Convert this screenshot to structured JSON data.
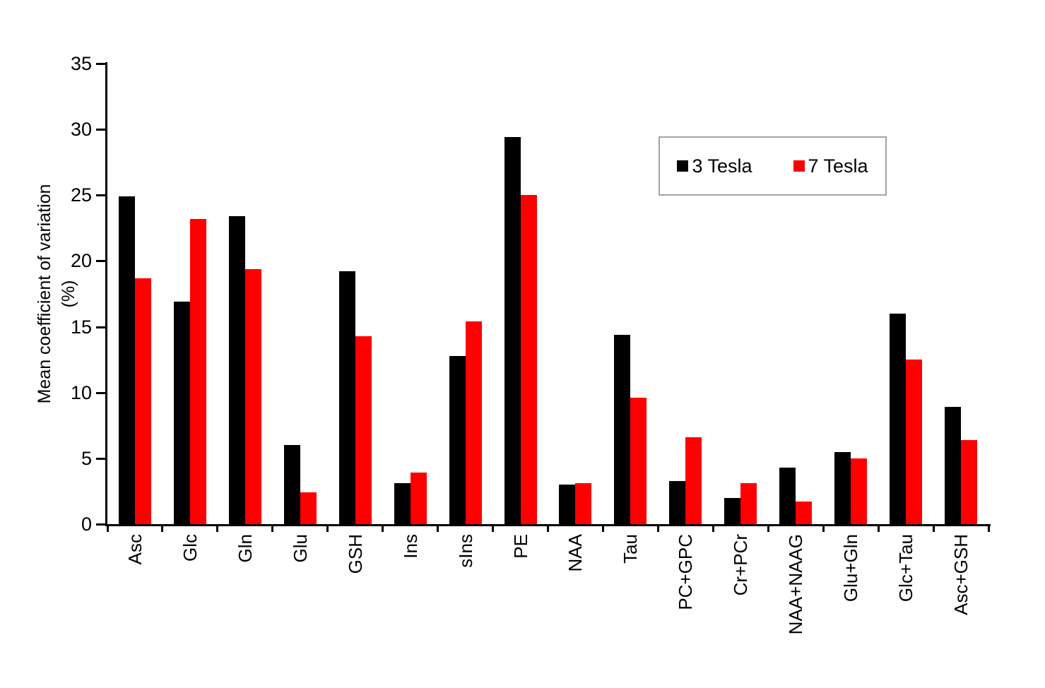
{
  "chart_data": {
    "type": "bar",
    "title": "",
    "ylabel_line1": "Mean coefficient of variation",
    "ylabel_line2": "(%)",
    "xlabel": "",
    "ylim": [
      0,
      35
    ],
    "yticks": [
      0,
      5,
      10,
      15,
      20,
      25,
      30,
      35
    ],
    "grid": "off",
    "legend_position": "top-right",
    "axis_color": "#000000",
    "categories": [
      "Asc",
      "Glc",
      "Gln",
      "Glu",
      "GSH",
      "Ins",
      "sIns",
      "PE",
      "NAA",
      "Tau",
      "PC+GPC",
      "Cr+PCr",
      "NAA+NAAG",
      "Glu+Gln",
      "Glc+Tau",
      "Asc+GSH"
    ],
    "series": [
      {
        "name": "3 Tesla",
        "color": "#000000",
        "values": [
          24.9,
          16.9,
          23.4,
          6.0,
          19.2,
          3.1,
          12.8,
          29.4,
          3.0,
          14.4,
          3.3,
          2.0,
          4.3,
          5.5,
          16.0,
          8.9
        ]
      },
      {
        "name": "7 Tesla",
        "color": "#ff0000",
        "values": [
          18.7,
          23.2,
          19.4,
          2.4,
          14.3,
          3.9,
          15.4,
          25.0,
          3.1,
          9.6,
          6.6,
          3.1,
          1.7,
          5.0,
          12.5,
          6.4
        ]
      }
    ]
  }
}
